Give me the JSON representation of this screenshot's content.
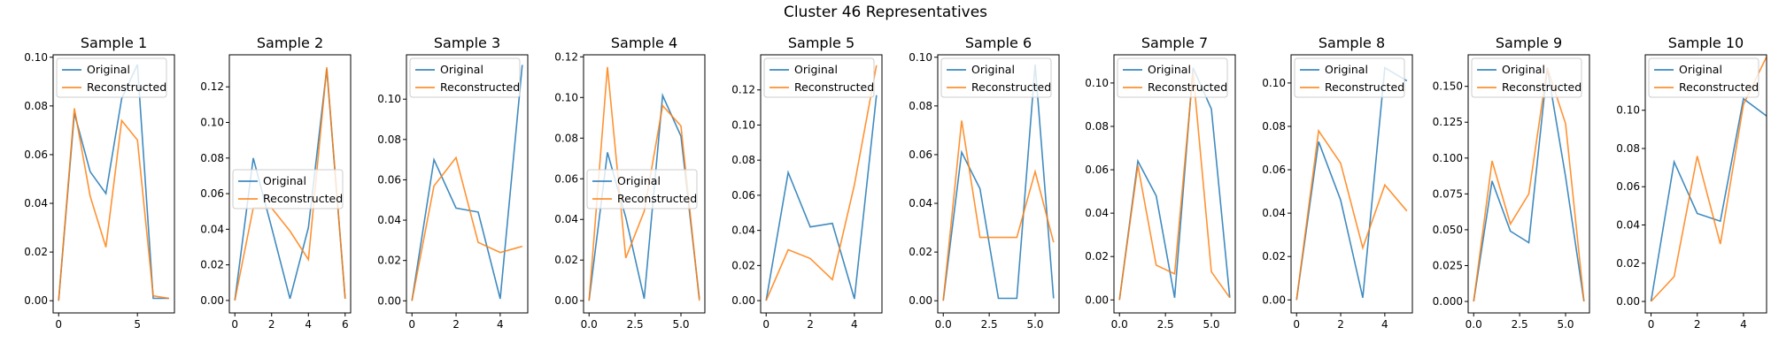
{
  "figure": {
    "title": "Cluster 46 Representatives"
  },
  "colors": {
    "original": "#1f77b4",
    "reconstructed": "#ff7f0e"
  },
  "chart_data": [
    {
      "type": "line",
      "title": "Sample 1",
      "xlim": [
        -0.35,
        7.35
      ],
      "ylim": [
        -0.005,
        0.101
      ],
      "xticks": [
        0,
        5
      ],
      "xtick_labels": [
        "0",
        "5"
      ],
      "yticks": [
        0.0,
        0.02,
        0.04,
        0.06,
        0.08,
        0.1
      ],
      "ytick_labels": [
        "0.00",
        "0.02",
        "0.04",
        "0.06",
        "0.08",
        "0.10"
      ],
      "legend": {
        "position": "upper-left"
      },
      "series": [
        {
          "name": "Original",
          "x": [
            0,
            1,
            2,
            3,
            4,
            5,
            6,
            7
          ],
          "y": [
            0.0,
            0.077,
            0.053,
            0.044,
            0.083,
            0.097,
            0.001,
            0.001
          ]
        },
        {
          "name": "Reconstructed",
          "x": [
            0,
            1,
            2,
            3,
            4,
            5,
            6,
            7
          ],
          "y": [
            0.0,
            0.079,
            0.043,
            0.022,
            0.074,
            0.066,
            0.002,
            0.001
          ]
        }
      ]
    },
    {
      "type": "line",
      "title": "Sample 2",
      "xlim": [
        -0.3,
        6.3
      ],
      "ylim": [
        -0.007,
        0.138
      ],
      "xticks": [
        0,
        2,
        4,
        6
      ],
      "xtick_labels": [
        "0",
        "2",
        "4",
        "6"
      ],
      "yticks": [
        0.0,
        0.02,
        0.04,
        0.06,
        0.08,
        0.1,
        0.12
      ],
      "ytick_labels": [
        "0.00",
        "0.02",
        "0.04",
        "0.06",
        "0.08",
        "0.10",
        "0.12"
      ],
      "legend": {
        "position": "center-left"
      },
      "series": [
        {
          "name": "Original",
          "x": [
            0,
            1,
            2,
            3,
            4,
            5,
            6
          ],
          "y": [
            0.0,
            0.08,
            0.041,
            0.001,
            0.041,
            0.13,
            0.001
          ]
        },
        {
          "name": "Reconstructed",
          "x": [
            0,
            1,
            2,
            3,
            4,
            5,
            6
          ],
          "y": [
            0.0,
            0.052,
            0.052,
            0.039,
            0.023,
            0.131,
            0.001
          ]
        }
      ]
    },
    {
      "type": "line",
      "title": "Sample 3",
      "xlim": [
        -0.25,
        5.25
      ],
      "ylim": [
        -0.006,
        0.122
      ],
      "xticks": [
        0,
        2,
        4
      ],
      "xtick_labels": [
        "0",
        "2",
        "4"
      ],
      "yticks": [
        0.0,
        0.02,
        0.04,
        0.06,
        0.08,
        0.1
      ],
      "ytick_labels": [
        "0.00",
        "0.02",
        "0.04",
        "0.06",
        "0.08",
        "0.10"
      ],
      "legend": {
        "position": "upper-left"
      },
      "series": [
        {
          "name": "Original",
          "x": [
            0,
            1,
            2,
            3,
            4,
            5
          ],
          "y": [
            0.0,
            0.07,
            0.046,
            0.044,
            0.001,
            0.117
          ]
        },
        {
          "name": "Reconstructed",
          "x": [
            0,
            1,
            2,
            3,
            4,
            5
          ],
          "y": [
            0.0,
            0.057,
            0.071,
            0.029,
            0.024,
            0.027
          ]
        }
      ]
    },
    {
      "type": "line",
      "title": "Sample 4",
      "xlim": [
        -0.3,
        6.3
      ],
      "ylim": [
        -0.006,
        0.121
      ],
      "xticks": [
        0,
        2.5,
        5
      ],
      "xtick_labels": [
        "0.0",
        "2.5",
        "5.0"
      ],
      "yticks": [
        0.0,
        0.02,
        0.04,
        0.06,
        0.08,
        0.1,
        0.12
      ],
      "ytick_labels": [
        "0.00",
        "0.02",
        "0.04",
        "0.06",
        "0.08",
        "0.10",
        "0.12"
      ],
      "legend": {
        "position": "center-left"
      },
      "series": [
        {
          "name": "Original",
          "x": [
            0,
            1,
            2,
            3,
            4,
            5,
            6
          ],
          "y": [
            0.0,
            0.073,
            0.041,
            0.001,
            0.101,
            0.081,
            0.001
          ]
        },
        {
          "name": "Reconstructed",
          "x": [
            0,
            1,
            2,
            3,
            4,
            5,
            6
          ],
          "y": [
            0.0,
            0.115,
            0.021,
            0.044,
            0.096,
            0.086,
            0.0
          ]
        }
      ]
    },
    {
      "type": "line",
      "title": "Sample 5",
      "xlim": [
        -0.25,
        5.25
      ],
      "ylim": [
        -0.007,
        0.14
      ],
      "xticks": [
        0,
        2,
        4
      ],
      "xtick_labels": [
        "0",
        "2",
        "4"
      ],
      "yticks": [
        0.0,
        0.02,
        0.04,
        0.06,
        0.08,
        0.1,
        0.12
      ],
      "ytick_labels": [
        "0.00",
        "0.02",
        "0.04",
        "0.06",
        "0.08",
        "0.10",
        "0.12"
      ],
      "legend": {
        "position": "upper-left"
      },
      "series": [
        {
          "name": "Original",
          "x": [
            0,
            1,
            2,
            3,
            4,
            5
          ],
          "y": [
            0.0,
            0.073,
            0.042,
            0.044,
            0.001,
            0.117
          ]
        },
        {
          "name": "Reconstructed",
          "x": [
            0,
            1,
            2,
            3,
            4,
            5
          ],
          "y": [
            0.0,
            0.029,
            0.024,
            0.012,
            0.066,
            0.134
          ]
        }
      ]
    },
    {
      "type": "line",
      "title": "Sample 6",
      "xlim": [
        -0.3,
        6.3
      ],
      "ylim": [
        -0.005,
        0.101
      ],
      "xticks": [
        0,
        2.5,
        5
      ],
      "xtick_labels": [
        "0.0",
        "2.5",
        "5.0"
      ],
      "yticks": [
        0.0,
        0.02,
        0.04,
        0.06,
        0.08,
        0.1
      ],
      "ytick_labels": [
        "0.00",
        "0.02",
        "0.04",
        "0.06",
        "0.08",
        "0.10"
      ],
      "legend": {
        "position": "upper-left"
      },
      "series": [
        {
          "name": "Original",
          "x": [
            0,
            1,
            2,
            3,
            4,
            5,
            6
          ],
          "y": [
            0.0,
            0.061,
            0.046,
            0.001,
            0.001,
            0.097,
            0.001
          ]
        },
        {
          "name": "Reconstructed",
          "x": [
            0,
            1,
            2,
            3,
            4,
            5,
            6
          ],
          "y": [
            0.0,
            0.074,
            0.026,
            0.026,
            0.026,
            0.053,
            0.024
          ]
        }
      ]
    },
    {
      "type": "line",
      "title": "Sample 7",
      "xlim": [
        -0.3,
        6.3
      ],
      "ylim": [
        -0.006,
        0.113
      ],
      "xticks": [
        0,
        2.5,
        5
      ],
      "xtick_labels": [
        "0.0",
        "2.5",
        "5.0"
      ],
      "yticks": [
        0.0,
        0.02,
        0.04,
        0.06,
        0.08,
        0.1
      ],
      "ytick_labels": [
        "0.00",
        "0.02",
        "0.04",
        "0.06",
        "0.08",
        "0.10"
      ],
      "legend": {
        "position": "upper-left"
      },
      "series": [
        {
          "name": "Original",
          "x": [
            0,
            1,
            2,
            3,
            4,
            5,
            6
          ],
          "y": [
            0.0,
            0.064,
            0.048,
            0.001,
            0.107,
            0.088,
            0.001
          ]
        },
        {
          "name": "Reconstructed",
          "x": [
            0,
            1,
            2,
            3,
            4,
            5,
            6
          ],
          "y": [
            0.0,
            0.062,
            0.016,
            0.012,
            0.105,
            0.013,
            0.001
          ]
        }
      ]
    },
    {
      "type": "line",
      "title": "Sample 8",
      "xlim": [
        -0.25,
        5.25
      ],
      "ylim": [
        -0.006,
        0.113
      ],
      "xticks": [
        0,
        2,
        4
      ],
      "xtick_labels": [
        "0",
        "2",
        "4"
      ],
      "yticks": [
        0.0,
        0.02,
        0.04,
        0.06,
        0.08,
        0.1
      ],
      "ytick_labels": [
        "0.00",
        "0.02",
        "0.04",
        "0.06",
        "0.08",
        "0.10"
      ],
      "legend": {
        "position": "upper-left"
      },
      "series": [
        {
          "name": "Original",
          "x": [
            0,
            1,
            2,
            3,
            4,
            5
          ],
          "y": [
            0.0,
            0.073,
            0.046,
            0.001,
            0.107,
            0.101
          ]
        },
        {
          "name": "Reconstructed",
          "x": [
            0,
            1,
            2,
            3,
            4,
            5
          ],
          "y": [
            0.0,
            0.078,
            0.063,
            0.024,
            0.053,
            0.041
          ]
        }
      ]
    },
    {
      "type": "line",
      "title": "Sample 9",
      "xlim": [
        -0.3,
        6.3
      ],
      "ylim": [
        -0.008,
        0.172
      ],
      "xticks": [
        0,
        2.5,
        5
      ],
      "xtick_labels": [
        "0.0",
        "2.5",
        "5.0"
      ],
      "yticks": [
        0.0,
        0.025,
        0.05,
        0.075,
        0.1,
        0.125,
        0.15
      ],
      "ytick_labels": [
        "0.000",
        "0.025",
        "0.050",
        "0.075",
        "0.100",
        "0.125",
        "0.150"
      ],
      "legend": {
        "position": "upper-left"
      },
      "series": [
        {
          "name": "Original",
          "x": [
            0,
            1,
            2,
            3,
            4,
            5,
            6
          ],
          "y": [
            0.0,
            0.084,
            0.049,
            0.041,
            0.163,
            0.087,
            0.0
          ]
        },
        {
          "name": "Reconstructed",
          "x": [
            0,
            1,
            2,
            3,
            4,
            5,
            6
          ],
          "y": [
            0.0,
            0.098,
            0.054,
            0.075,
            0.163,
            0.124,
            0.0
          ]
        }
      ]
    },
    {
      "type": "line",
      "title": "Sample 10",
      "xlim": [
        -0.25,
        5.0
      ],
      "ylim": [
        -0.006,
        0.129
      ],
      "xticks": [
        0,
        2,
        4
      ],
      "xtick_labels": [
        "0",
        "2",
        "4"
      ],
      "yticks": [
        0.0,
        0.02,
        0.04,
        0.06,
        0.08,
        0.1
      ],
      "ytick_labels": [
        "0.00",
        "0.02",
        "0.04",
        "0.06",
        "0.08",
        "0.10"
      ],
      "legend": {
        "position": "upper-left"
      },
      "series": [
        {
          "name": "Original",
          "x": [
            0,
            1,
            2,
            3,
            4,
            5
          ],
          "y": [
            0.0,
            0.073,
            0.046,
            0.042,
            0.106,
            0.097
          ]
        },
        {
          "name": "Reconstructed",
          "x": [
            0,
            1,
            2,
            3,
            4,
            5
          ],
          "y": [
            0.0,
            0.013,
            0.076,
            0.03,
            0.103,
            0.128
          ]
        }
      ]
    }
  ]
}
